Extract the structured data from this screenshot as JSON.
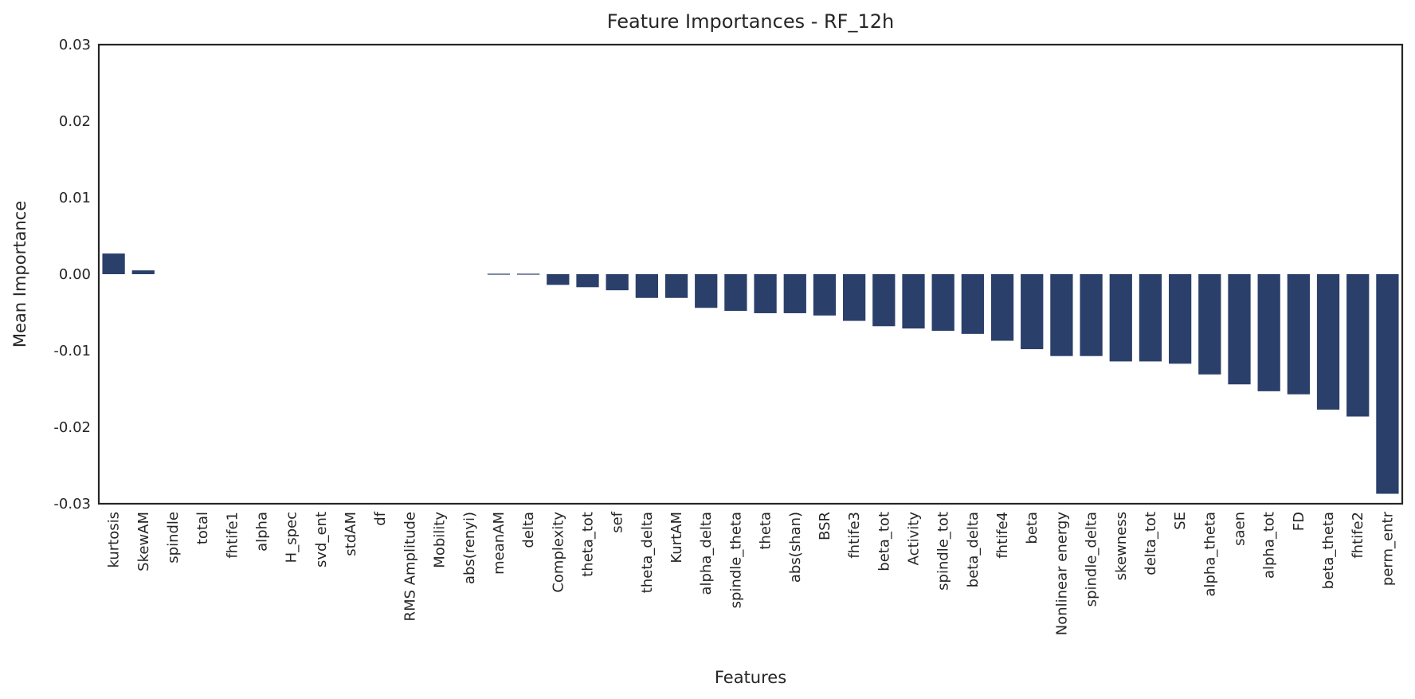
{
  "chart_data": {
    "type": "bar",
    "title": "Feature Importances - RF_12h",
    "xlabel": "Features",
    "ylabel": "Mean Importance",
    "ylim": [
      -0.03,
      0.03
    ],
    "yticks": [
      "-0.03",
      "-0.02",
      "-0.01",
      "0.00",
      "0.01",
      "0.02",
      "0.03"
    ],
    "ytick_values": [
      -0.03,
      -0.02,
      -0.01,
      0.0,
      0.01,
      0.02,
      0.03
    ],
    "grid": false,
    "bar_color": "#2b3f6b",
    "categories": [
      "kurtosis",
      "SkewAM",
      "spindle",
      "total",
      "fhtife1",
      "alpha",
      "H_spec",
      "svd_ent",
      "stdAM",
      "df",
      "RMS Amplitude",
      "Mobility",
      "abs(renyi)",
      "meanAM",
      "delta",
      "Complexity",
      "theta_tot",
      "sef",
      "theta_delta",
      "KurtAM",
      "alpha_delta",
      "spindle_theta",
      "theta",
      "abs(shan)",
      "BSR",
      "fhtife3",
      "beta_tot",
      "Activity",
      "spindle_tot",
      "beta_delta",
      "fhtife4",
      "beta",
      "Nonlinear energy",
      "spindle_delta",
      "skewness",
      "delta_tot",
      "SE",
      "alpha_theta",
      "saen",
      "alpha_tot",
      "FD",
      "beta_theta",
      "fhtife2",
      "perm_entr"
    ],
    "values": [
      0.0027,
      0.0005,
      0.0,
      0.0,
      0.0,
      0.0,
      0.0,
      0.0,
      0.0,
      0.0,
      0.0,
      0.0,
      0.0,
      -0.0001,
      -0.0001,
      -0.0014,
      -0.0017,
      -0.0021,
      -0.0031,
      -0.0031,
      -0.0044,
      -0.0048,
      -0.0051,
      -0.0051,
      -0.0054,
      -0.0061,
      -0.0068,
      -0.0071,
      -0.0074,
      -0.0078,
      -0.0087,
      -0.0098,
      -0.0107,
      -0.0107,
      -0.0114,
      -0.0114,
      -0.0117,
      -0.0131,
      -0.0144,
      -0.0153,
      -0.0157,
      -0.0177,
      -0.0186,
      -0.0287
    ]
  }
}
